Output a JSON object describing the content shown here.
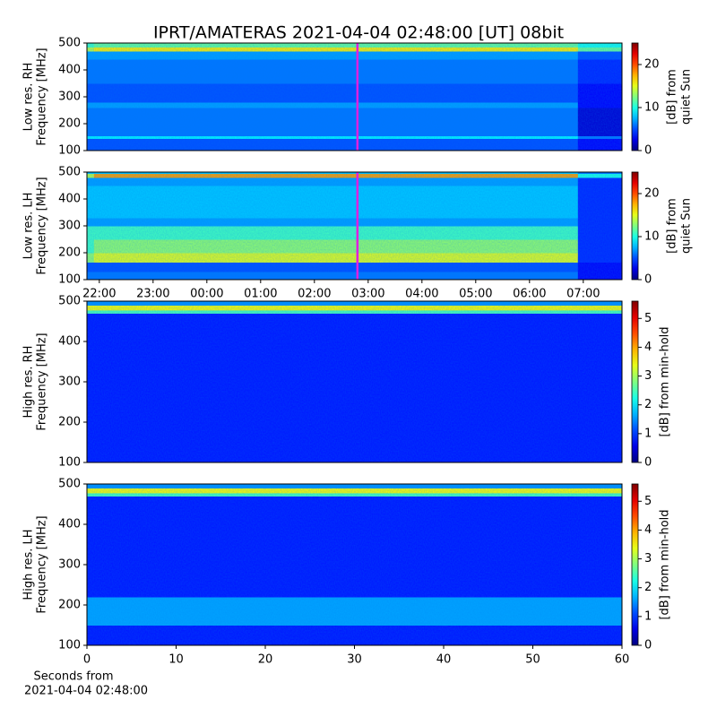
{
  "chart_data": [
    {
      "type": "heatmap",
      "title": "IPRT/AMATERAS 2021-04-04 02:48:00 [UT]   08bit",
      "ylabel": [
        "Low res. RH",
        "Frequency [MHz]"
      ],
      "colorbar_label": [
        "[dB] from",
        "quiet Sun"
      ],
      "xlim": [
        21.77,
        31.72
      ],
      "ylim": [
        100,
        500
      ],
      "yticks": [
        100,
        200,
        300,
        400,
        500
      ],
      "clim": [
        0,
        25
      ],
      "cticks": [
        0,
        10,
        20
      ],
      "cursor": 26.8,
      "cursor_color": "#e020e0",
      "x_edges": [
        21.77,
        21.9,
        30.9,
        31.72
      ],
      "y_edges": [
        100,
        145,
        155,
        260,
        280,
        350,
        440,
        470,
        485,
        500
      ],
      "z": [
        [
          5,
          5,
          3
        ],
        [
          9,
          9,
          6
        ],
        [
          6,
          6,
          2
        ],
        [
          7,
          7,
          3
        ],
        [
          5,
          5,
          3
        ],
        [
          6,
          6,
          4
        ],
        [
          7,
          7,
          5
        ],
        [
          14,
          16,
          12
        ],
        [
          11,
          12,
          10
        ]
      ]
    },
    {
      "type": "heatmap",
      "ylabel": [
        "Low res. LH",
        "Frequency [MHz]"
      ],
      "colorbar_label": [
        "[dB] from",
        "quiet Sun"
      ],
      "xlim": [
        21.77,
        31.72
      ],
      "ylim": [
        100,
        500
      ],
      "yticks": [
        100,
        200,
        300,
        400,
        500
      ],
      "xticks": [
        {
          "value": 22,
          "label": "22:00"
        },
        {
          "value": 23,
          "label": "23:00"
        },
        {
          "value": 24,
          "label": "00:00"
        },
        {
          "value": 25,
          "label": "01:00"
        },
        {
          "value": 26,
          "label": "02:00"
        },
        {
          "value": 27,
          "label": "03:00"
        },
        {
          "value": 28,
          "label": "04:00"
        },
        {
          "value": 29,
          "label": "05:00"
        },
        {
          "value": 30,
          "label": "06:00"
        },
        {
          "value": 31,
          "label": "07:00"
        }
      ],
      "clim": [
        0,
        25
      ],
      "cticks": [
        0,
        10,
        20
      ],
      "cursor": 26.8,
      "cursor_color": "#e020e0",
      "x_edges": [
        21.77,
        21.9,
        30.9,
        31.72
      ],
      "y_edges": [
        100,
        130,
        165,
        200,
        250,
        300,
        330,
        450,
        480,
        495,
        500
      ],
      "z": [
        [
          6,
          6,
          3
        ],
        [
          5,
          5,
          3
        ],
        [
          13,
          15,
          4
        ],
        [
          11,
          13,
          4
        ],
        [
          11,
          11,
          4
        ],
        [
          7,
          7,
          4
        ],
        [
          8,
          8,
          4
        ],
        [
          7,
          7,
          4
        ],
        [
          14,
          18,
          10
        ],
        [
          8,
          8,
          6
        ]
      ]
    },
    {
      "type": "heatmap",
      "ylabel": [
        "High res. RH",
        "Frequency [MHz]"
      ],
      "colorbar_label": [
        "[dB] from min-hold"
      ],
      "xlim": [
        0,
        60
      ],
      "ylim": [
        100,
        500
      ],
      "yticks": [
        100,
        200,
        300,
        400,
        500
      ],
      "clim": [
        0,
        5.6
      ],
      "cticks": [
        0,
        1,
        2,
        3,
        4,
        5
      ],
      "x_edges": [
        0,
        60
      ],
      "y_edges": [
        100,
        470,
        478,
        490,
        500
      ],
      "z": [
        [
          0.8
        ],
        [
          2.5
        ],
        [
          3.5
        ],
        [
          1.5
        ]
      ]
    },
    {
      "type": "heatmap",
      "ylabel": [
        "High res. LH",
        "Frequency [MHz]"
      ],
      "colorbar_label": [
        "[dB] from min-hold"
      ],
      "xlabel": [
        "Seconds from",
        "2021-04-04 02:48:00"
      ],
      "xlim": [
        0,
        60
      ],
      "ylim": [
        100,
        500
      ],
      "yticks": [
        100,
        200,
        300,
        400,
        500
      ],
      "xticks": [
        0,
        10,
        20,
        30,
        40,
        50,
        60
      ],
      "clim": [
        0,
        5.6
      ],
      "cticks": [
        0,
        1,
        2,
        3,
        4,
        5
      ],
      "x_edges": [
        0,
        60
      ],
      "y_edges": [
        100,
        150,
        220,
        470,
        478,
        490,
        500
      ],
      "z": [
        [
          0.8
        ],
        [
          1.6
        ],
        [
          0.8
        ],
        [
          2.5
        ],
        [
          3.5
        ],
        [
          1.5
        ]
      ]
    }
  ]
}
